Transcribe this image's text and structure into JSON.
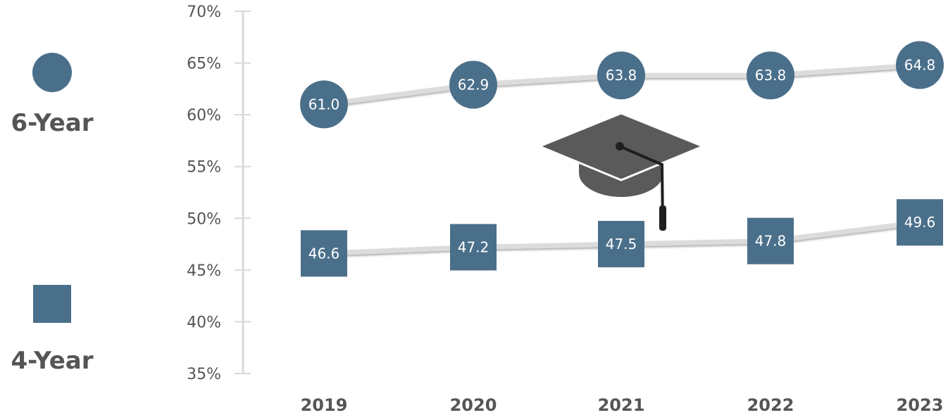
{
  "colors": {
    "marker": "#4a6f8a",
    "line": "#dcdcdc",
    "axis": "#d9d9d9",
    "text": "#555555",
    "cap": "#5a5a5a",
    "tassel": "#1f1f1f"
  },
  "icons": [
    "graduation-cap-icon"
  ],
  "legend": [
    {
      "label": "6-Year",
      "marker": "circle"
    },
    {
      "label": "4-Year",
      "marker": "square"
    }
  ],
  "chart_data": {
    "type": "line",
    "categories": [
      "2019",
      "2020",
      "2021",
      "2022",
      "2023"
    ],
    "ylim": [
      35,
      70
    ],
    "yticks": [
      "70%",
      "65%",
      "60%",
      "55%",
      "50%",
      "45%",
      "40%",
      "35%"
    ],
    "ytick_values": [
      70,
      65,
      60,
      55,
      50,
      45,
      40,
      35
    ],
    "legend_position": "left",
    "grid": false,
    "series": [
      {
        "name": "6-Year",
        "marker": "circle",
        "values": [
          61.0,
          62.9,
          63.8,
          63.8,
          64.8
        ],
        "labels": [
          "61.0",
          "62.9",
          "63.8",
          "63.8",
          "64.8"
        ]
      },
      {
        "name": "4-Year",
        "marker": "square",
        "values": [
          46.6,
          47.2,
          47.5,
          47.8,
          49.6
        ],
        "labels": [
          "46.6",
          "47.2",
          "47.5",
          "47.8",
          "49.6"
        ]
      }
    ]
  }
}
